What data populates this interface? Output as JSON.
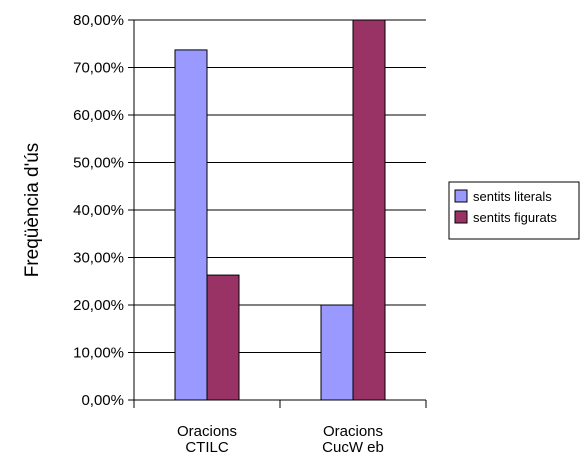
{
  "chart_data": {
    "type": "bar",
    "title": "",
    "xlabel": "",
    "ylabel": "Freqüència d'ús",
    "ylim": [
      0,
      80
    ],
    "ytick_step": 10,
    "ytick_labels": [
      "0,00%",
      "10,00%",
      "20,00%",
      "30,00%",
      "40,00%",
      "50,00%",
      "60,00%",
      "70,00%",
      "80,00%"
    ],
    "categories": [
      [
        "Oracions",
        "CTILC"
      ],
      [
        "Oracions",
        "CucW eb"
      ]
    ],
    "series": [
      {
        "name": "sentits literals",
        "color": "#9999ff",
        "values": [
          73.7,
          20.0
        ]
      },
      {
        "name": "sentits figurats",
        "color": "#993366",
        "values": [
          26.3,
          80.0
        ]
      }
    ],
    "grid": true,
    "legend_position": "right"
  }
}
